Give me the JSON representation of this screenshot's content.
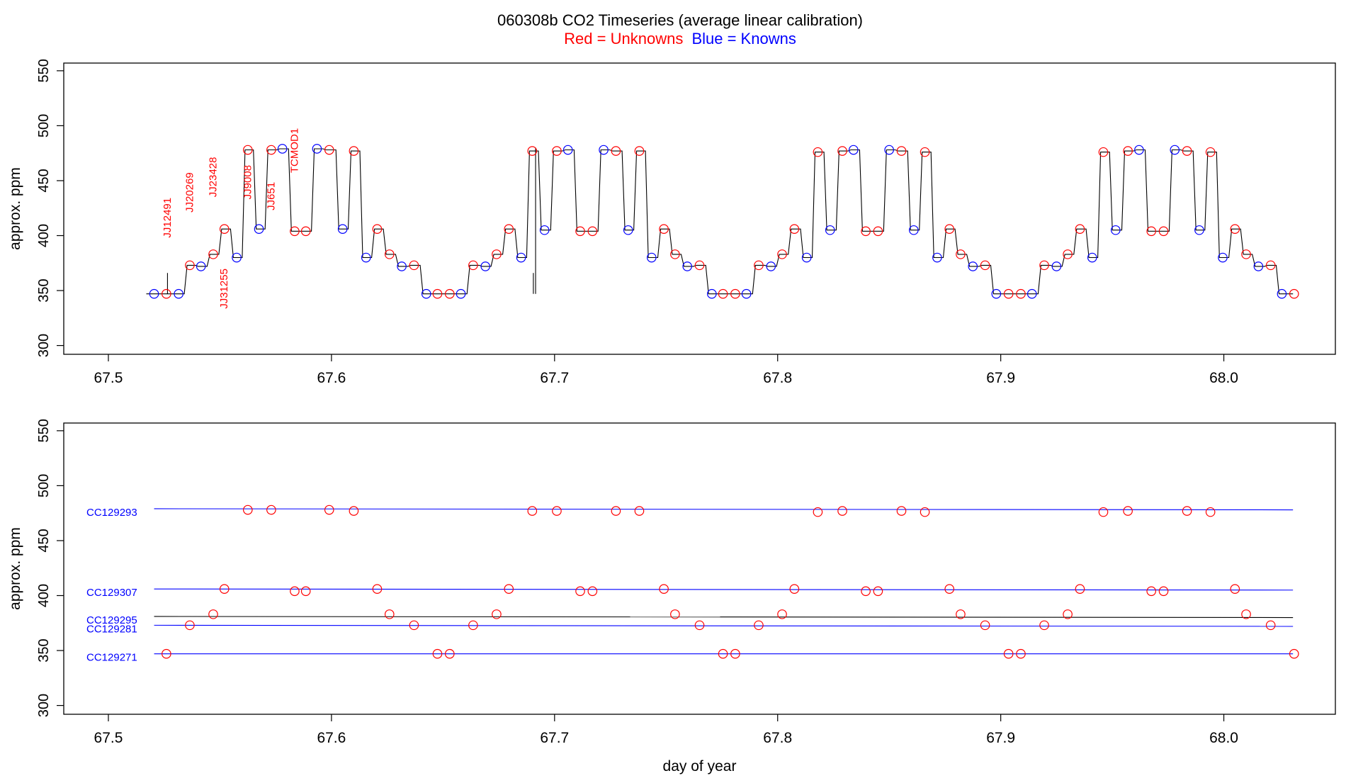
{
  "title": {
    "main": "060308b   CO2 Timeseries (average linear calibration)",
    "legend_red": "Red = Unknowns",
    "legend_blue": "Blue = Knowns"
  },
  "colors": {
    "unknown": "#ff0000",
    "known": "#0000ff",
    "trace": "#000000",
    "axis": "#000000"
  },
  "chart_data": [
    {
      "type": "line",
      "panel": "top",
      "ylabel": "approx. ppm",
      "xlabel": "",
      "xlim": [
        67.48,
        68.05
      ],
      "ylim": [
        292,
        557
      ],
      "x_ticks": [
        "67.5",
        "67.6",
        "67.7",
        "67.8",
        "67.9",
        "68.0"
      ],
      "y_ticks": [
        "300",
        "350",
        "400",
        "450",
        "500",
        "550"
      ],
      "x_tick_values": [
        67.5,
        67.6,
        67.7,
        67.8,
        67.9,
        68.0
      ],
      "y_tick_values": [
        300,
        350,
        400,
        450,
        500,
        550
      ],
      "trace": {
        "start": 67.517,
        "end": 68.031,
        "spikes": [
          {
            "x": 67.5265,
            "y": 366
          },
          {
            "x": 67.6905,
            "y": 366
          },
          {
            "x": 67.6915,
            "y": 480
          }
        ]
      },
      "points": [
        {
          "x": 67.5205,
          "y": 347,
          "s": "k"
        },
        {
          "x": 67.526,
          "y": 347,
          "s": "u"
        },
        {
          "x": 67.5315,
          "y": 347,
          "s": "k"
        },
        {
          "x": 67.5365,
          "y": 373,
          "s": "u"
        },
        {
          "x": 67.5415,
          "y": 372,
          "s": "k"
        },
        {
          "x": 67.547,
          "y": 383,
          "s": "u"
        },
        {
          "x": 67.552,
          "y": 406,
          "s": "u"
        },
        {
          "x": 67.5575,
          "y": 380,
          "s": "k"
        },
        {
          "x": 67.5625,
          "y": 478,
          "s": "u"
        },
        {
          "x": 67.5675,
          "y": 406,
          "s": "k"
        },
        {
          "x": 67.573,
          "y": 478,
          "s": "u"
        },
        {
          "x": 67.578,
          "y": 479,
          "s": "k"
        },
        {
          "x": 67.5835,
          "y": 404,
          "s": "u"
        },
        {
          "x": 67.5885,
          "y": 404,
          "s": "u"
        },
        {
          "x": 67.5935,
          "y": 479,
          "s": "k"
        },
        {
          "x": 67.599,
          "y": 478,
          "s": "u"
        },
        {
          "x": 67.605,
          "y": 406,
          "s": "k"
        },
        {
          "x": 67.61,
          "y": 477,
          "s": "u"
        },
        {
          "x": 67.6155,
          "y": 380,
          "s": "k"
        },
        {
          "x": 67.6205,
          "y": 406,
          "s": "u"
        },
        {
          "x": 67.626,
          "y": 383,
          "s": "u"
        },
        {
          "x": 67.6315,
          "y": 372,
          "s": "k"
        },
        {
          "x": 67.637,
          "y": 373,
          "s": "u"
        },
        {
          "x": 67.6425,
          "y": 347,
          "s": "k"
        },
        {
          "x": 67.6475,
          "y": 347,
          "s": "u"
        },
        {
          "x": 67.653,
          "y": 347,
          "s": "u"
        },
        {
          "x": 67.658,
          "y": 347,
          "s": "k"
        },
        {
          "x": 67.6635,
          "y": 373,
          "s": "u"
        },
        {
          "x": 67.669,
          "y": 372,
          "s": "k"
        },
        {
          "x": 67.674,
          "y": 383,
          "s": "u"
        },
        {
          "x": 67.6795,
          "y": 406,
          "s": "u"
        },
        {
          "x": 67.685,
          "y": 380,
          "s": "k"
        },
        {
          "x": 67.69,
          "y": 477,
          "s": "u"
        },
        {
          "x": 67.6955,
          "y": 405,
          "s": "k"
        },
        {
          "x": 67.701,
          "y": 477,
          "s": "u"
        },
        {
          "x": 67.706,
          "y": 478,
          "s": "k"
        },
        {
          "x": 67.7115,
          "y": 404,
          "s": "u"
        },
        {
          "x": 67.717,
          "y": 404,
          "s": "u"
        },
        {
          "x": 67.722,
          "y": 478,
          "s": "k"
        },
        {
          "x": 67.7275,
          "y": 477,
          "s": "u"
        },
        {
          "x": 67.733,
          "y": 405,
          "s": "k"
        },
        {
          "x": 67.738,
          "y": 477,
          "s": "u"
        },
        {
          "x": 67.7435,
          "y": 380,
          "s": "k"
        },
        {
          "x": 67.749,
          "y": 406,
          "s": "u"
        },
        {
          "x": 67.754,
          "y": 383,
          "s": "u"
        },
        {
          "x": 67.7595,
          "y": 372,
          "s": "k"
        },
        {
          "x": 67.765,
          "y": 373,
          "s": "u"
        },
        {
          "x": 67.7705,
          "y": 347,
          "s": "k"
        },
        {
          "x": 67.7755,
          "y": 347,
          "s": "u"
        },
        {
          "x": 67.781,
          "y": 347,
          "s": "u"
        },
        {
          "x": 67.786,
          "y": 347,
          "s": "k"
        },
        {
          "x": 67.7915,
          "y": 373,
          "s": "u"
        },
        {
          "x": 67.797,
          "y": 372,
          "s": "k"
        },
        {
          "x": 67.802,
          "y": 383,
          "s": "u"
        },
        {
          "x": 67.8075,
          "y": 406,
          "s": "u"
        },
        {
          "x": 67.813,
          "y": 380,
          "s": "k"
        },
        {
          "x": 67.818,
          "y": 476,
          "s": "u"
        },
        {
          "x": 67.8235,
          "y": 405,
          "s": "k"
        },
        {
          "x": 67.829,
          "y": 477,
          "s": "u"
        },
        {
          "x": 67.834,
          "y": 478,
          "s": "k"
        },
        {
          "x": 67.8395,
          "y": 404,
          "s": "u"
        },
        {
          "x": 67.845,
          "y": 404,
          "s": "u"
        },
        {
          "x": 67.85,
          "y": 478,
          "s": "k"
        },
        {
          "x": 67.8555,
          "y": 477,
          "s": "u"
        },
        {
          "x": 67.861,
          "y": 405,
          "s": "k"
        },
        {
          "x": 67.866,
          "y": 476,
          "s": "u"
        },
        {
          "x": 67.8715,
          "y": 380,
          "s": "k"
        },
        {
          "x": 67.877,
          "y": 406,
          "s": "u"
        },
        {
          "x": 67.882,
          "y": 383,
          "s": "u"
        },
        {
          "x": 67.8875,
          "y": 372,
          "s": "k"
        },
        {
          "x": 67.893,
          "y": 373,
          "s": "u"
        },
        {
          "x": 67.898,
          "y": 347,
          "s": "k"
        },
        {
          "x": 67.9035,
          "y": 347,
          "s": "u"
        },
        {
          "x": 67.909,
          "y": 347,
          "s": "u"
        },
        {
          "x": 67.914,
          "y": 347,
          "s": "k"
        },
        {
          "x": 67.9195,
          "y": 373,
          "s": "u"
        },
        {
          "x": 67.925,
          "y": 372,
          "s": "k"
        },
        {
          "x": 67.93,
          "y": 383,
          "s": "u"
        },
        {
          "x": 67.9355,
          "y": 406,
          "s": "u"
        },
        {
          "x": 67.941,
          "y": 380,
          "s": "k"
        },
        {
          "x": 67.946,
          "y": 476,
          "s": "u"
        },
        {
          "x": 67.9515,
          "y": 405,
          "s": "k"
        },
        {
          "x": 67.957,
          "y": 477,
          "s": "u"
        },
        {
          "x": 67.962,
          "y": 478,
          "s": "k"
        },
        {
          "x": 67.9675,
          "y": 404,
          "s": "u"
        },
        {
          "x": 67.973,
          "y": 404,
          "s": "u"
        },
        {
          "x": 67.978,
          "y": 478,
          "s": "k"
        },
        {
          "x": 67.9835,
          "y": 477,
          "s": "u"
        },
        {
          "x": 67.989,
          "y": 405,
          "s": "k"
        },
        {
          "x": 67.994,
          "y": 476,
          "s": "u"
        },
        {
          "x": 67.9995,
          "y": 380,
          "s": "k"
        },
        {
          "x": 68.005,
          "y": 406,
          "s": "u"
        },
        {
          "x": 68.01,
          "y": 383,
          "s": "u"
        },
        {
          "x": 68.0155,
          "y": 372,
          "s": "k"
        },
        {
          "x": 68.021,
          "y": 373,
          "s": "u"
        },
        {
          "x": 68.026,
          "y": 347,
          "s": "k"
        },
        {
          "x": 68.0315,
          "y": 347,
          "s": "u"
        }
      ],
      "annotations": [
        {
          "text": "JJ12491",
          "x": 67.5265,
          "y": 398,
          "side": "above"
        },
        {
          "text": "JJ20269",
          "x": 67.5365,
          "y": 421,
          "side": "above"
        },
        {
          "text": "JJ23428",
          "x": 67.547,
          "y": 435,
          "side": "above"
        },
        {
          "text": "JJ31255",
          "x": 67.552,
          "y": 370,
          "side": "below"
        },
        {
          "text": "JJ9008",
          "x": 67.5625,
          "y": 433,
          "side": "above"
        },
        {
          "text": "JJ651",
          "x": 67.573,
          "y": 423,
          "side": "above"
        },
        {
          "text": "TCMOD1",
          "x": 67.5835,
          "y": 457,
          "side": "above"
        }
      ]
    },
    {
      "type": "scatter",
      "panel": "bottom",
      "ylabel": "approx. ppm",
      "xlabel": "day of year",
      "xlim": [
        67.48,
        68.05
      ],
      "ylim": [
        292,
        557
      ],
      "x_ticks": [
        "67.5",
        "67.6",
        "67.7",
        "67.8",
        "67.9",
        "68.0"
      ],
      "y_ticks": [
        "300",
        "350",
        "400",
        "450",
        "500",
        "550"
      ],
      "x_tick_values": [
        67.5,
        67.6,
        67.7,
        67.8,
        67.9,
        68.0
      ],
      "y_tick_values": [
        300,
        350,
        400,
        450,
        500,
        550
      ],
      "reference_lines": [
        {
          "label": "CC129293",
          "y_start": 479,
          "y_end": 478,
          "color": "known"
        },
        {
          "label": "CC129307",
          "y_start": 406,
          "y_end": 405,
          "color": "known"
        },
        {
          "label": "CC129295",
          "y_start": 381,
          "y_end": 380,
          "color": "trace"
        },
        {
          "label": "CC129281",
          "y_start": 373,
          "y_end": 372,
          "color": "known"
        },
        {
          "label": "CC129271",
          "y_start": 347,
          "y_end": 347,
          "color": "known"
        }
      ],
      "reference_x": [
        67.5205,
        68.031
      ],
      "points": [
        {
          "x": 67.526,
          "y": 347
        },
        {
          "x": 67.5365,
          "y": 373
        },
        {
          "x": 67.547,
          "y": 383
        },
        {
          "x": 67.552,
          "y": 406
        },
        {
          "x": 67.5625,
          "y": 478
        },
        {
          "x": 67.573,
          "y": 478
        },
        {
          "x": 67.5835,
          "y": 404
        },
        {
          "x": 67.5885,
          "y": 404
        },
        {
          "x": 67.599,
          "y": 478
        },
        {
          "x": 67.61,
          "y": 477
        },
        {
          "x": 67.6205,
          "y": 406
        },
        {
          "x": 67.626,
          "y": 383
        },
        {
          "x": 67.637,
          "y": 373
        },
        {
          "x": 67.6475,
          "y": 347
        },
        {
          "x": 67.653,
          "y": 347
        },
        {
          "x": 67.6635,
          "y": 373
        },
        {
          "x": 67.674,
          "y": 383
        },
        {
          "x": 67.6795,
          "y": 406
        },
        {
          "x": 67.69,
          "y": 477
        },
        {
          "x": 67.701,
          "y": 477
        },
        {
          "x": 67.7115,
          "y": 404
        },
        {
          "x": 67.717,
          "y": 404
        },
        {
          "x": 67.7275,
          "y": 477
        },
        {
          "x": 67.738,
          "y": 477
        },
        {
          "x": 67.749,
          "y": 406
        },
        {
          "x": 67.754,
          "y": 383
        },
        {
          "x": 67.765,
          "y": 373
        },
        {
          "x": 67.7755,
          "y": 347
        },
        {
          "x": 67.781,
          "y": 347
        },
        {
          "x": 67.7915,
          "y": 373
        },
        {
          "x": 67.802,
          "y": 383
        },
        {
          "x": 67.8075,
          "y": 406
        },
        {
          "x": 67.818,
          "y": 476
        },
        {
          "x": 67.829,
          "y": 477
        },
        {
          "x": 67.8395,
          "y": 404
        },
        {
          "x": 67.845,
          "y": 404
        },
        {
          "x": 67.8555,
          "y": 477
        },
        {
          "x": 67.866,
          "y": 476
        },
        {
          "x": 67.877,
          "y": 406
        },
        {
          "x": 67.882,
          "y": 383
        },
        {
          "x": 67.893,
          "y": 373
        },
        {
          "x": 67.9035,
          "y": 347
        },
        {
          "x": 67.909,
          "y": 347
        },
        {
          "x": 67.9195,
          "y": 373
        },
        {
          "x": 67.93,
          "y": 383
        },
        {
          "x": 67.9355,
          "y": 406
        },
        {
          "x": 67.946,
          "y": 476
        },
        {
          "x": 67.957,
          "y": 477
        },
        {
          "x": 67.9675,
          "y": 404
        },
        {
          "x": 67.973,
          "y": 404
        },
        {
          "x": 67.9835,
          "y": 477
        },
        {
          "x": 67.994,
          "y": 476
        },
        {
          "x": 68.005,
          "y": 406
        },
        {
          "x": 68.01,
          "y": 383
        },
        {
          "x": 68.021,
          "y": 373
        },
        {
          "x": 68.0315,
          "y": 347
        }
      ]
    }
  ]
}
